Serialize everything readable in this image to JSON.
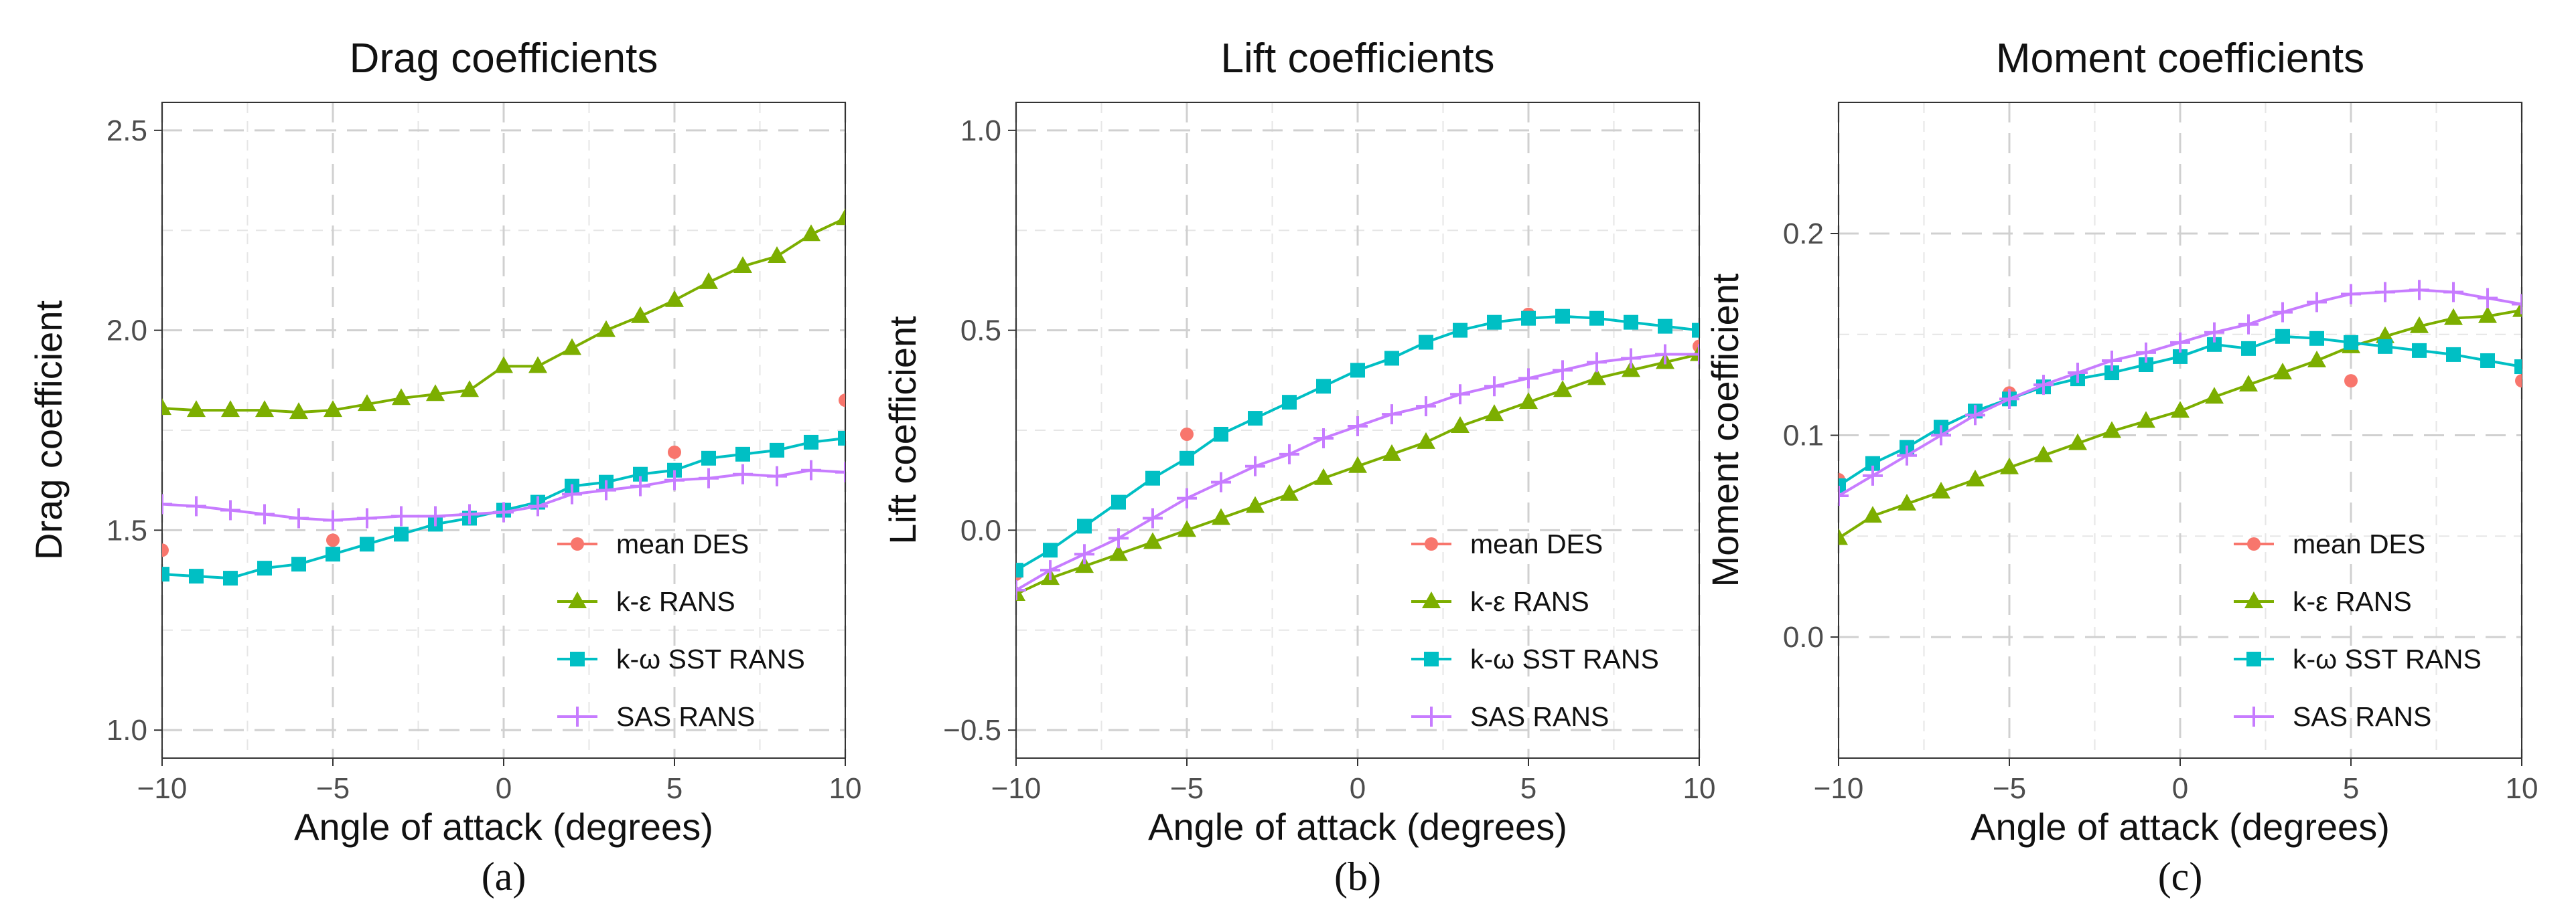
{
  "colors": {
    "mean_des": "#F8766D",
    "k_eps": "#7CAE00",
    "k_omega": "#00BFC4",
    "sas": "#C77CFF"
  },
  "chart_data": [
    {
      "type": "line",
      "title": "Drag coefficients",
      "xlabel": "Angle of attack (degrees)",
      "ylabel": "Drag coefficient",
      "caption": "(a)",
      "xlim": [
        -10,
        10
      ],
      "ylim": [
        0.93,
        2.57
      ],
      "xticks": [
        -10,
        -5,
        0,
        5,
        10
      ],
      "xtick_labels": [
        "−10",
        "−5",
        "0",
        "5",
        "10"
      ],
      "yticks": [
        1.0,
        1.5,
        2.0,
        2.5
      ],
      "ytick_labels": [
        "1.0",
        "1.5",
        "2.0",
        "2.5"
      ],
      "grid": true,
      "legend": [
        "mean DES",
        "k-ε RANS",
        "k-ω SST RANS",
        "SAS RANS"
      ],
      "legend_position": "bottom-right",
      "series": [
        {
          "name": "mean DES",
          "key": "mean_des",
          "marker": "circle",
          "line": false,
          "x": [
            -10,
            -5,
            5,
            10
          ],
          "values": [
            1.45,
            1.475,
            1.695,
            1.825
          ]
        },
        {
          "name": "k-ε RANS",
          "key": "k_eps",
          "marker": "triangle",
          "line": true,
          "x": [
            -10,
            -9,
            -8,
            -7,
            -6,
            -5,
            -4,
            -3,
            -2,
            -1,
            0,
            1,
            2,
            3,
            4,
            5,
            6,
            7,
            8,
            9,
            10
          ],
          "values": [
            1.805,
            1.8,
            1.8,
            1.8,
            1.795,
            1.8,
            1.815,
            1.83,
            1.84,
            1.85,
            1.91,
            1.91,
            1.955,
            2.0,
            2.035,
            2.075,
            2.12,
            2.16,
            2.185,
            2.24,
            2.28
          ]
        },
        {
          "name": "k-ω SST RANS",
          "key": "k_omega",
          "marker": "square",
          "line": true,
          "x": [
            -10,
            -9,
            -8,
            -7,
            -6,
            -5,
            -4,
            -3,
            -2,
            -1,
            0,
            1,
            2,
            3,
            4,
            5,
            6,
            7,
            8,
            9,
            10
          ],
          "values": [
            1.39,
            1.385,
            1.38,
            1.405,
            1.415,
            1.44,
            1.465,
            1.49,
            1.515,
            1.53,
            1.55,
            1.57,
            1.61,
            1.62,
            1.64,
            1.65,
            1.68,
            1.69,
            1.7,
            1.72,
            1.73
          ]
        },
        {
          "name": "SAS RANS",
          "key": "sas",
          "marker": "plus",
          "line": true,
          "x": [
            -10,
            -9,
            -8,
            -7,
            -6,
            -5,
            -4,
            -3,
            -2,
            -1,
            0,
            1,
            2,
            3,
            4,
            5,
            6,
            7,
            8,
            9,
            10
          ],
          "values": [
            1.565,
            1.56,
            1.55,
            1.54,
            1.53,
            1.525,
            1.53,
            1.535,
            1.535,
            1.54,
            1.545,
            1.56,
            1.59,
            1.6,
            1.61,
            1.625,
            1.63,
            1.64,
            1.635,
            1.65,
            1.645
          ]
        }
      ]
    },
    {
      "type": "line",
      "title": "Lift coefficients",
      "xlabel": "Angle of attack (degrees)",
      "ylabel": "Lift coefficient",
      "caption": "(b)",
      "xlim": [
        -10,
        10
      ],
      "ylim": [
        -0.57,
        1.07
      ],
      "xticks": [
        -10,
        -5,
        0,
        5,
        10
      ],
      "xtick_labels": [
        "−10",
        "−5",
        "0",
        "5",
        "10"
      ],
      "yticks": [
        -0.5,
        0.0,
        0.5,
        1.0
      ],
      "ytick_labels": [
        "−0.5",
        "0.0",
        "0.5",
        "1.0"
      ],
      "grid": true,
      "legend": [
        "mean DES",
        "k-ε RANS",
        "k-ω SST RANS",
        "SAS RANS"
      ],
      "legend_position": "bottom-right",
      "series": [
        {
          "name": "mean DES",
          "key": "mean_des",
          "marker": "circle",
          "line": false,
          "x": [
            -10,
            -5,
            5,
            10
          ],
          "values": [
            -0.11,
            0.24,
            0.54,
            0.46
          ]
        },
        {
          "name": "k-ε RANS",
          "key": "k_eps",
          "marker": "triangle",
          "line": true,
          "x": [
            -10,
            -9,
            -8,
            -7,
            -6,
            -5,
            -4,
            -3,
            -2,
            -1,
            0,
            1,
            2,
            3,
            4,
            5,
            6,
            7,
            8,
            9,
            10
          ],
          "values": [
            -0.16,
            -0.12,
            -0.09,
            -0.06,
            -0.03,
            0.0,
            0.03,
            0.06,
            0.09,
            0.13,
            0.16,
            0.19,
            0.22,
            0.26,
            0.29,
            0.32,
            0.35,
            0.38,
            0.4,
            0.42,
            0.44
          ]
        },
        {
          "name": "k-ω SST RANS",
          "key": "k_omega",
          "marker": "square",
          "line": true,
          "x": [
            -10,
            -9,
            -8,
            -7,
            -6,
            -5,
            -4,
            -3,
            -2,
            -1,
            0,
            1,
            2,
            3,
            4,
            5,
            6,
            7,
            8,
            9,
            10
          ],
          "values": [
            -0.1,
            -0.05,
            0.01,
            0.07,
            0.13,
            0.18,
            0.24,
            0.28,
            0.32,
            0.36,
            0.4,
            0.43,
            0.47,
            0.5,
            0.52,
            0.53,
            0.535,
            0.53,
            0.52,
            0.51,
            0.5
          ]
        },
        {
          "name": "SAS RANS",
          "key": "sas",
          "marker": "plus",
          "line": true,
          "x": [
            -10,
            -9,
            -8,
            -7,
            -6,
            -5,
            -4,
            -3,
            -2,
            -1,
            0,
            1,
            2,
            3,
            4,
            5,
            6,
            7,
            8,
            9,
            10
          ],
          "values": [
            -0.15,
            -0.1,
            -0.06,
            -0.02,
            0.03,
            0.08,
            0.12,
            0.16,
            0.19,
            0.23,
            0.26,
            0.29,
            0.31,
            0.34,
            0.36,
            0.38,
            0.4,
            0.42,
            0.43,
            0.44,
            0.44
          ]
        }
      ]
    },
    {
      "type": "line",
      "title": "Moment coefficients",
      "xlabel": "Angle of attack (degrees)",
      "ylabel": "Moment coefficient",
      "caption": "(c)",
      "xlim": [
        -10,
        10
      ],
      "ylim": [
        -0.06,
        0.265
      ],
      "xticks": [
        -10,
        -5,
        0,
        5,
        10
      ],
      "xtick_labels": [
        "−10",
        "−5",
        "0",
        "5",
        "10"
      ],
      "yticks": [
        0.0,
        0.1,
        0.2
      ],
      "ytick_labels": [
        "0.0",
        "0.1",
        "0.2"
      ],
      "grid": true,
      "legend": [
        "mean DES",
        "k-ε RANS",
        "k-ω SST RANS",
        "SAS RANS"
      ],
      "legend_position": "bottom-right",
      "series": [
        {
          "name": "mean DES",
          "key": "mean_des",
          "marker": "circle",
          "line": false,
          "x": [
            -10,
            -5,
            5,
            10
          ],
          "values": [
            0.078,
            0.121,
            0.127,
            0.127
          ]
        },
        {
          "name": "k-ε RANS",
          "key": "k_eps",
          "marker": "triangle",
          "line": true,
          "x": [
            -10,
            -9,
            -8,
            -7,
            -6,
            -5,
            -4,
            -3,
            -2,
            -1,
            0,
            1,
            2,
            3,
            4,
            5,
            6,
            7,
            8,
            9,
            10
          ],
          "values": [
            0.049,
            0.06,
            0.066,
            0.072,
            0.078,
            0.084,
            0.09,
            0.096,
            0.102,
            0.107,
            0.112,
            0.119,
            0.125,
            0.131,
            0.137,
            0.144,
            0.149,
            0.154,
            0.158,
            0.159,
            0.162
          ]
        },
        {
          "name": "k-ω SST RANS",
          "key": "k_omega",
          "marker": "square",
          "line": true,
          "x": [
            -10,
            -9,
            -8,
            -7,
            -6,
            -5,
            -4,
            -3,
            -2,
            -1,
            0,
            1,
            2,
            3,
            4,
            5,
            6,
            7,
            8,
            9,
            10
          ],
          "values": [
            0.075,
            0.086,
            0.094,
            0.104,
            0.112,
            0.118,
            0.124,
            0.128,
            0.131,
            0.135,
            0.139,
            0.145,
            0.143,
            0.149,
            0.148,
            0.146,
            0.144,
            0.142,
            0.14,
            0.137,
            0.134
          ]
        },
        {
          "name": "SAS RANS",
          "key": "sas",
          "marker": "plus",
          "line": true,
          "x": [
            -10,
            -9,
            -8,
            -7,
            -6,
            -5,
            -4,
            -3,
            -2,
            -1,
            0,
            1,
            2,
            3,
            4,
            5,
            6,
            7,
            8,
            9,
            10
          ],
          "values": [
            0.07,
            0.08,
            0.09,
            0.1,
            0.11,
            0.118,
            0.125,
            0.131,
            0.137,
            0.141,
            0.146,
            0.151,
            0.155,
            0.161,
            0.166,
            0.17,
            0.171,
            0.172,
            0.171,
            0.168,
            0.165
          ]
        }
      ]
    }
  ]
}
